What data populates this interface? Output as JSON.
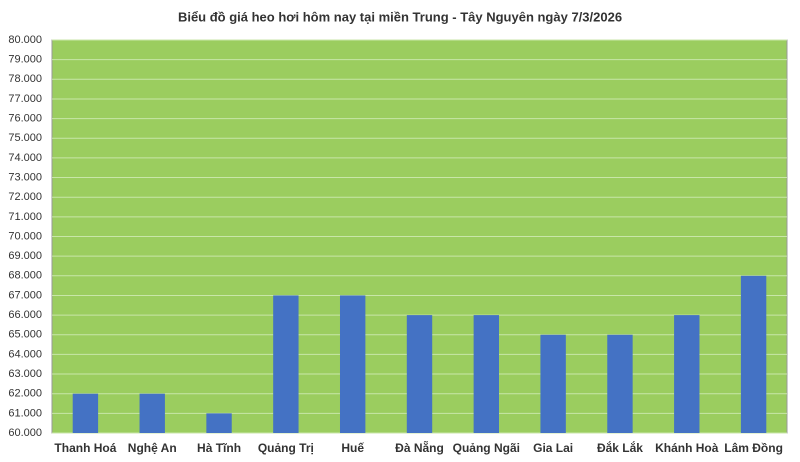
{
  "chart_data": {
    "type": "bar",
    "title": "Biểu đồ giá heo hơi hôm nay tại miền Trung - Tây Nguyên ngày 7/3/2026",
    "categories": [
      "Thanh Hoá",
      "Nghệ An",
      "Hà Tĩnh",
      "Quảng Trị",
      "Huế",
      "Đà Nẵng",
      "Quảng Ngãi",
      "Gia Lai",
      "Đắk Lắk",
      "Khánh Hoà",
      "Lâm Đồng"
    ],
    "values": [
      62000,
      62000,
      61000,
      67000,
      67000,
      66000,
      66000,
      65000,
      65000,
      66000,
      68000
    ],
    "color": "#4472c4",
    "ylim": [
      60000,
      80000
    ],
    "yticks": [
      {
        "value": 60000,
        "label": "60.000"
      },
      {
        "value": 61000,
        "label": "61.000"
      },
      {
        "value": 62000,
        "label": "62.000"
      },
      {
        "value": 63000,
        "label": "63.000"
      },
      {
        "value": 64000,
        "label": "64.000"
      },
      {
        "value": 65000,
        "label": "65.000"
      },
      {
        "value": 66000,
        "label": "66.000"
      },
      {
        "value": 67000,
        "label": "67.000"
      },
      {
        "value": 68000,
        "label": "68.000"
      },
      {
        "value": 69000,
        "label": "69.000"
      },
      {
        "value": 70000,
        "label": "70.000"
      },
      {
        "value": 71000,
        "label": "71.000"
      },
      {
        "value": 72000,
        "label": "72.000"
      },
      {
        "value": 73000,
        "label": "73.000"
      },
      {
        "value": 74000,
        "label": "74.000"
      },
      {
        "value": 75000,
        "label": "75.000"
      },
      {
        "value": 76000,
        "label": "76.000"
      },
      {
        "value": 77000,
        "label": "77.000"
      },
      {
        "value": 78000,
        "label": "78.000"
      },
      {
        "value": 79000,
        "label": "79.000"
      },
      {
        "value": 80000,
        "label": "80.000"
      }
    ],
    "grid": true
  }
}
